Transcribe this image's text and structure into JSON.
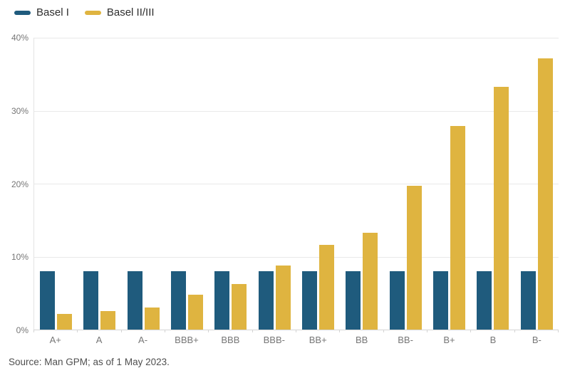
{
  "source_note": "Source: Man GPM; as of 1 May 2023.",
  "chart_data": {
    "type": "bar",
    "title": "",
    "categories": [
      "A+",
      "A",
      "A-",
      "BBB+",
      "BBB",
      "BBB-",
      "BB+",
      "BB",
      "BB-",
      "B+",
      "B",
      "B-"
    ],
    "series": [
      {
        "name": "Basel I",
        "color": "#1f5b7d",
        "values": [
          8,
          8,
          8,
          8,
          8,
          8,
          8,
          8,
          8,
          8,
          8,
          8
        ]
      },
      {
        "name": "Basel II/III",
        "color": "#dfb440",
        "values": [
          2.1,
          2.5,
          3.0,
          4.8,
          6.2,
          8.8,
          11.6,
          13.3,
          19.7,
          27.9,
          33.3,
          37.2
        ]
      }
    ],
    "xlabel": "",
    "ylabel": "",
    "y_ticks": [
      "0%",
      "10%",
      "20%",
      "30%",
      "40%"
    ],
    "ylim": [
      0,
      40
    ],
    "grid": true,
    "legend_position": "top-left"
  }
}
